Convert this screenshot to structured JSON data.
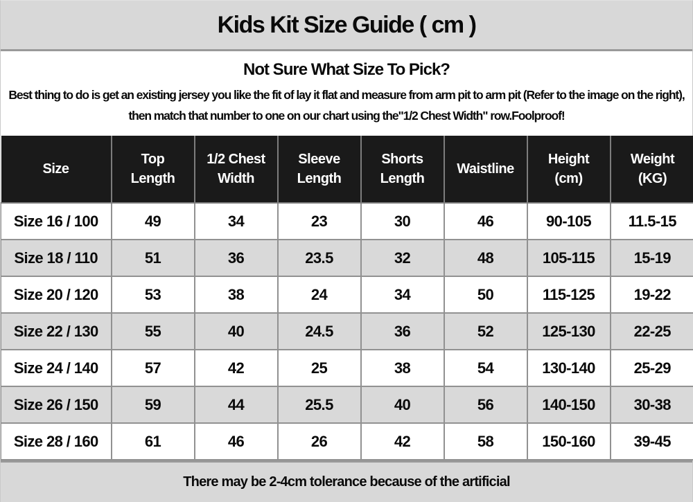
{
  "title": "Kids Kit Size Guide ( cm )",
  "intro": {
    "heading": "Not Sure What Size To Pick?",
    "body": "Best thing to do is get an existing jersey you like the fit of lay it flat and measure from arm pit to arm pit (Refer to the image on the right), then match that number to one on our chart using the\"1/2 Chest Width\" row.Foolproof!"
  },
  "table": {
    "columns": [
      {
        "label": "Size",
        "lines": [
          "Size"
        ]
      },
      {
        "label": "Top Length",
        "lines": [
          "Top",
          "Length"
        ]
      },
      {
        "label": "1/2 Chest Width",
        "lines": [
          "1/2 Chest",
          "Width"
        ]
      },
      {
        "label": "Sleeve Length",
        "lines": [
          "Sleeve",
          "Length"
        ]
      },
      {
        "label": "Shorts Length",
        "lines": [
          "Shorts",
          "Length"
        ]
      },
      {
        "label": "Waistline",
        "lines": [
          "Waistline"
        ]
      },
      {
        "label": "Height (cm)",
        "lines": [
          "Height",
          "(cm)"
        ]
      },
      {
        "label": "Weight (KG)",
        "lines": [
          "Weight",
          "(KG)"
        ]
      }
    ],
    "rows": [
      [
        "Size 16 / 100",
        "49",
        "34",
        "23",
        "30",
        "46",
        "90-105",
        "11.5-15"
      ],
      [
        "Size 18 / 110",
        "51",
        "36",
        "23.5",
        "32",
        "48",
        "105-115",
        "15-19"
      ],
      [
        "Size 20 / 120",
        "53",
        "38",
        "24",
        "34",
        "50",
        "115-125",
        "19-22"
      ],
      [
        "Size 22 / 130",
        "55",
        "40",
        "24.5",
        "36",
        "52",
        "125-130",
        "22-25"
      ],
      [
        "Size 24 / 140",
        "57",
        "42",
        "25",
        "38",
        "54",
        "130-140",
        "25-29"
      ],
      [
        "Size 26 / 150",
        "59",
        "44",
        "25.5",
        "40",
        "56",
        "140-150",
        "30-38"
      ],
      [
        "Size 28 / 160",
        "61",
        "46",
        "26",
        "42",
        "58",
        "150-160",
        "39-45"
      ]
    ]
  },
  "footer_note": "There may be 2-4cm tolerance because of the artificial",
  "colors": {
    "band_bg": "#d8d8d8",
    "header_bg": "#1a1a1a",
    "header_text": "#ffffff",
    "row_bg": "#ffffff",
    "row_alt_bg": "#d9d9d9",
    "cell_border": "#919191",
    "band_separator": "#999999",
    "text": "#0a0a0a"
  }
}
